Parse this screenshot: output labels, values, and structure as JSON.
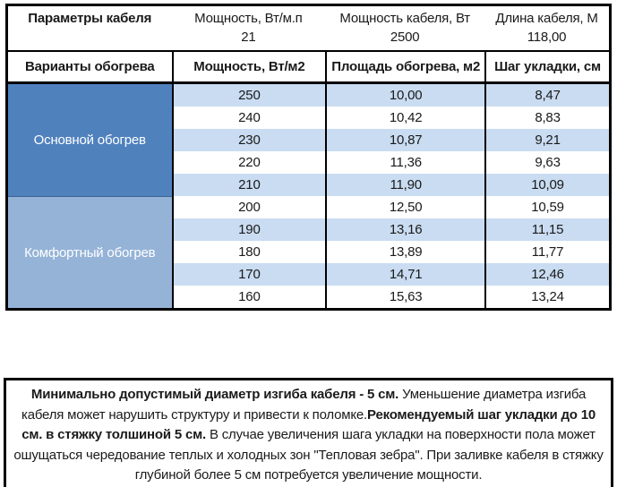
{
  "param_block": {
    "title": "Параметры кабеля",
    "col2_label": "Мощность, Вт/м.п",
    "col3_label": "Мощность кабеля, Вт",
    "col4_label": "Длина кабеля, М",
    "col2_value": "21",
    "col3_value": "2500",
    "col4_value": "118,00"
  },
  "table": {
    "columns": [
      "Варианты обогрева",
      "Мощность, Вт/м2",
      "Площадь обогрева, м2",
      "Шаг укладки, см"
    ],
    "stripe_color": "#c9dcf1",
    "sections": [
      {
        "name": "Основной обогрев",
        "color": "#4f81bd",
        "rows": [
          [
            "250",
            "10,00",
            "8,47"
          ],
          [
            "240",
            "10,42",
            "8,83"
          ],
          [
            "230",
            "10,87",
            "9,21"
          ],
          [
            "220",
            "11,36",
            "9,63"
          ],
          [
            "210",
            "11,90",
            "10,09"
          ]
        ]
      },
      {
        "name": "Комфортный обогрев",
        "color": "#95b3d7",
        "rows": [
          [
            "200",
            "12,50",
            "10,59"
          ],
          [
            "190",
            "13,16",
            "11,15"
          ],
          [
            "180",
            "13,89",
            "11,77"
          ],
          [
            "170",
            "14,71",
            "12,46"
          ],
          [
            "160",
            "15,63",
            "13,24"
          ]
        ]
      }
    ]
  },
  "note": {
    "segments": [
      {
        "text": "Минимально допустимый диаметр изгиба кабеля - 5 см.",
        "bold": true
      },
      {
        "text": "  Уменьшение диаметра изгиба кабеля может нарушить структуру и привести к поломке.",
        "bold": false
      },
      {
        "text": "Рекомендуемый шаг укладки до 10 см. в стяжку толшиной 5 см.",
        "bold": true
      },
      {
        "text": " В  случае увеличения шага укладки на поверхности пола может ошущаться чередование теплых и холодных зон \"Тепловая зебра\". При заливке кабеля в стяжку глубиной более 5 см потребуется увеличение мощности.",
        "bold": false
      }
    ]
  }
}
